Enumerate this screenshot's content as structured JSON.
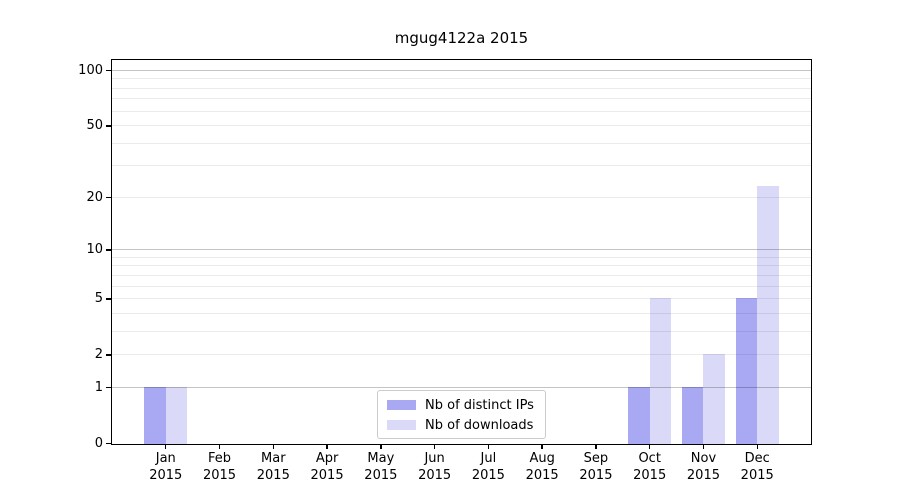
{
  "title": "mgug4122a 2015",
  "chart_data": {
    "type": "bar",
    "title": "mgug4122a 2015",
    "categories": [
      "Jan",
      "Feb",
      "Mar",
      "Apr",
      "May",
      "Jun",
      "Jul",
      "Aug",
      "Sep",
      "Oct",
      "Nov",
      "Dec"
    ],
    "category_year": "2015",
    "series": [
      {
        "name": "Nb of distinct IPs",
        "color": "#a9a9f3",
        "values": [
          1,
          0,
          0,
          0,
          0,
          0,
          0,
          0,
          0,
          1,
          1,
          5
        ]
      },
      {
        "name": "Nb of downloads",
        "color": "#dadaf8",
        "values": [
          1,
          0,
          0,
          0,
          0,
          0,
          0,
          0,
          0,
          5,
          2,
          23
        ]
      }
    ],
    "xlabel": "",
    "ylabel": "",
    "yscale": "log1p",
    "ylim": [
      0,
      113
    ],
    "yticks": [
      0,
      1,
      2,
      5,
      10,
      20,
      50,
      100
    ],
    "grid": {
      "major_values": [
        1,
        10,
        100
      ],
      "minor_values": [
        2,
        3,
        4,
        5,
        6,
        7,
        8,
        9,
        20,
        30,
        40,
        50,
        60,
        70,
        80,
        90
      ],
      "major_color": "rgba(0,0,0,0.23)",
      "minor_color": "rgba(0,0,0,0.08)"
    },
    "legend_position": "lower center",
    "background_color": "#ffffff",
    "spine_color": "#000000"
  }
}
